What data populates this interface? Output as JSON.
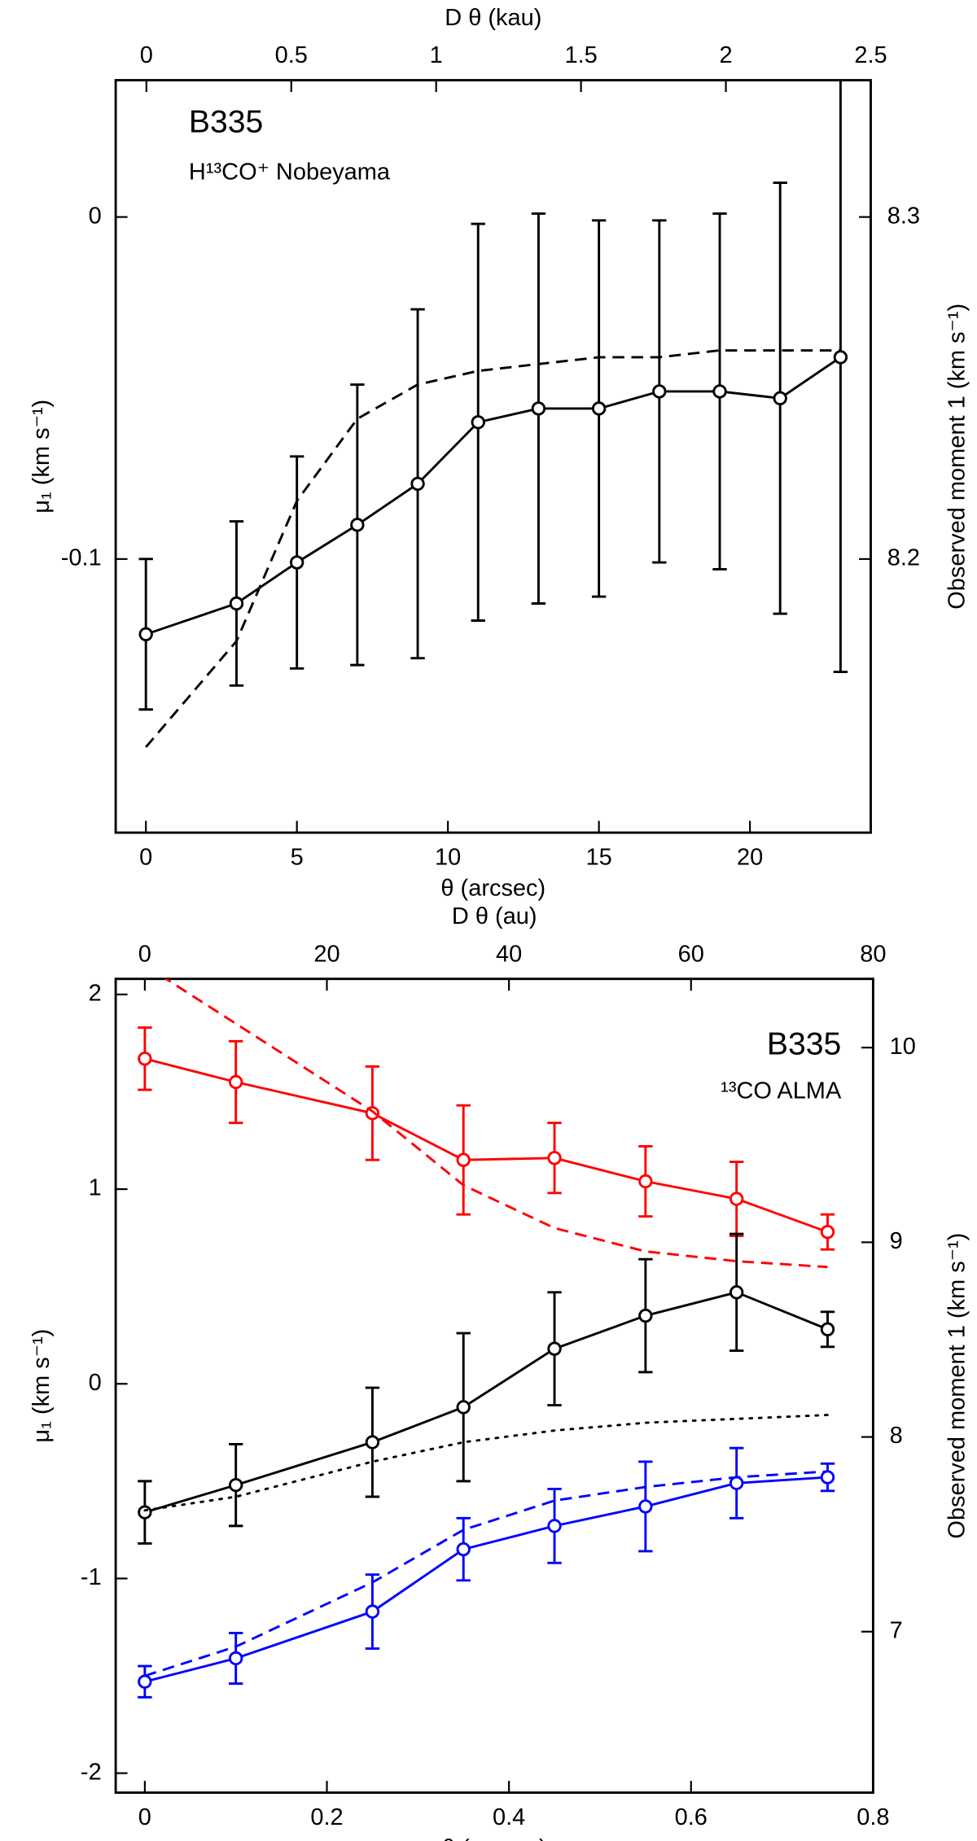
{
  "chart_data": [
    {
      "type": "line",
      "xlabel": "θ (arcsec)",
      "x2label": "D θ (kau)",
      "ylabel": "μ₁ (km s⁻¹)",
      "y2label": "Observed moment 1 (km s⁻¹)",
      "annotations": [
        "B335",
        "H¹³CO⁺ Nobeyama"
      ],
      "xlim": [
        -1,
        24
      ],
      "xticks": [
        0,
        5,
        10,
        15,
        20
      ],
      "x2lim": [
        -0.106,
        2.5
      ],
      "x2ticks": [
        0,
        0.5,
        1,
        1.5,
        2,
        2.5
      ],
      "ylim": [
        -0.18,
        0.04
      ],
      "yticks": [
        -0.1,
        0
      ],
      "y2lim": [
        8.12,
        8.34
      ],
      "y2ticks": [
        8.2,
        8.3
      ],
      "series": [
        {
          "color": "#000000",
          "dash": "solid",
          "marker": "circle",
          "x": [
            0,
            3,
            5,
            7,
            9,
            11,
            13,
            15,
            17,
            19,
            21,
            23
          ],
          "values": [
            -0.122,
            -0.113,
            -0.101,
            -0.09,
            -0.078,
            -0.06,
            -0.056,
            -0.056,
            -0.051,
            -0.051,
            -0.053,
            -0.041
          ],
          "errors": [
            0.022,
            0.024,
            0.031,
            0.041,
            0.051,
            0.058,
            0.057,
            0.055,
            0.05,
            0.052,
            0.063,
            0.092
          ]
        },
        {
          "color": "#000000",
          "dash": "dashed",
          "x": [
            0,
            3,
            5,
            7,
            9,
            11,
            13,
            15,
            17,
            19,
            21,
            23
          ],
          "values": [
            -0.155,
            -0.124,
            -0.083,
            -0.059,
            -0.049,
            -0.045,
            -0.043,
            -0.041,
            -0.041,
            -0.039,
            -0.039,
            -0.039
          ]
        }
      ]
    },
    {
      "type": "line",
      "xlabel": "θ (arcsec)",
      "x2label": "D θ (au)",
      "ylabel": "μ₁ (km s⁻¹)",
      "y2label": "Observed moment 1 (km s⁻¹)",
      "annotations": [
        "B335",
        "¹³CO ALMA"
      ],
      "xlim": [
        -0.032,
        0.8
      ],
      "xticks": [
        0,
        0.2,
        0.4,
        0.6,
        0.8
      ],
      "x2lim": [
        -3.2,
        80
      ],
      "x2ticks": [
        0,
        20,
        40,
        60,
        80
      ],
      "ylim": [
        -2.1,
        2.08
      ],
      "yticks": [
        -2,
        -1,
        0,
        1,
        2
      ],
      "y2lim": [
        6.173,
        10.353
      ],
      "y2ticks": [
        7,
        8,
        9,
        10
      ],
      "series": [
        {
          "color": "#ff0000",
          "dash": "solid",
          "marker": "circle",
          "x": [
            0,
            0.1,
            0.25,
            0.35,
            0.45,
            0.55,
            0.65,
            0.75
          ],
          "values": [
            1.67,
            1.55,
            1.39,
            1.15,
            1.16,
            1.04,
            0.95,
            0.78
          ],
          "errors": [
            0.16,
            0.21,
            0.24,
            0.28,
            0.18,
            0.18,
            0.19,
            0.09
          ]
        },
        {
          "color": "#ff0000",
          "dash": "dashed",
          "x": [
            0,
            0.1,
            0.25,
            0.35,
            0.45,
            0.55,
            0.65,
            0.75
          ],
          "values": [
            2.15,
            1.85,
            1.4,
            1.02,
            0.8,
            0.68,
            0.63,
            0.6
          ]
        },
        {
          "color": "#000000",
          "dash": "solid",
          "marker": "circle",
          "x": [
            0,
            0.1,
            0.25,
            0.35,
            0.45,
            0.55,
            0.65,
            0.75
          ],
          "values": [
            -0.66,
            -0.52,
            -0.3,
            -0.12,
            0.18,
            0.35,
            0.47,
            0.28
          ],
          "errors": [
            0.16,
            0.21,
            0.28,
            0.38,
            0.29,
            0.29,
            0.3,
            0.09
          ]
        },
        {
          "color": "#000000",
          "dash": "dotted",
          "x": [
            0,
            0.1,
            0.25,
            0.35,
            0.45,
            0.55,
            0.65,
            0.75
          ],
          "values": [
            -0.65,
            -0.58,
            -0.4,
            -0.3,
            -0.24,
            -0.2,
            -0.18,
            -0.16
          ]
        },
        {
          "color": "#0000ff",
          "dash": "solid",
          "marker": "circle",
          "x": [
            0,
            0.1,
            0.25,
            0.35,
            0.45,
            0.55,
            0.65,
            0.75
          ],
          "values": [
            -1.53,
            -1.41,
            -1.17,
            -0.85,
            -0.73,
            -0.63,
            -0.51,
            -0.48
          ],
          "errors": [
            0.08,
            0.13,
            0.19,
            0.16,
            0.19,
            0.23,
            0.18,
            0.07
          ]
        },
        {
          "color": "#0000ff",
          "dash": "dashed",
          "x": [
            0,
            0.1,
            0.25,
            0.35,
            0.45,
            0.55,
            0.65,
            0.75
          ],
          "values": [
            -1.5,
            -1.35,
            -1.02,
            -0.75,
            -0.6,
            -0.53,
            -0.48,
            -0.45
          ]
        }
      ]
    }
  ]
}
